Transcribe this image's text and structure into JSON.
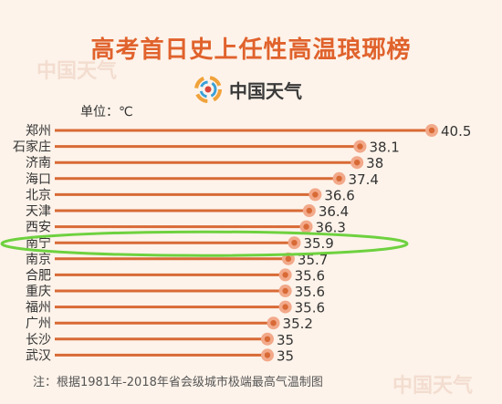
{
  "title": "高考首日史上任性高温琅琊榜",
  "brand": {
    "name": "中国天气",
    "logo_icon": "china-weather-swirl-logo"
  },
  "unit_label": "单位：℃",
  "footnote": "注：根据1981年-2018年省会级城市极端最高气温制图",
  "watermark": "中国天气",
  "colors": {
    "title": "#e0622c",
    "bar": "#d86a35",
    "dot": "#f2a98a",
    "highlight_ring": "#6ed13f"
  },
  "chart_data": {
    "type": "bar",
    "orientation": "horizontal",
    "title": "高考首日史上任性高温琅琊榜",
    "unit": "℃",
    "categories": [
      "郑州",
      "石家庄",
      "济南",
      "海口",
      "北京",
      "天津",
      "西安",
      "南宁",
      "南京",
      "合肥",
      "重庆",
      "福州",
      "广州",
      "长沙",
      "武汉"
    ],
    "values": [
      40.5,
      38.1,
      38,
      37.4,
      36.6,
      36.4,
      36.3,
      35.9,
      35.7,
      35.6,
      35.6,
      35.6,
      35.2,
      35,
      35
    ],
    "highlighted_category": "南宁",
    "grid": false,
    "legend": "none"
  }
}
